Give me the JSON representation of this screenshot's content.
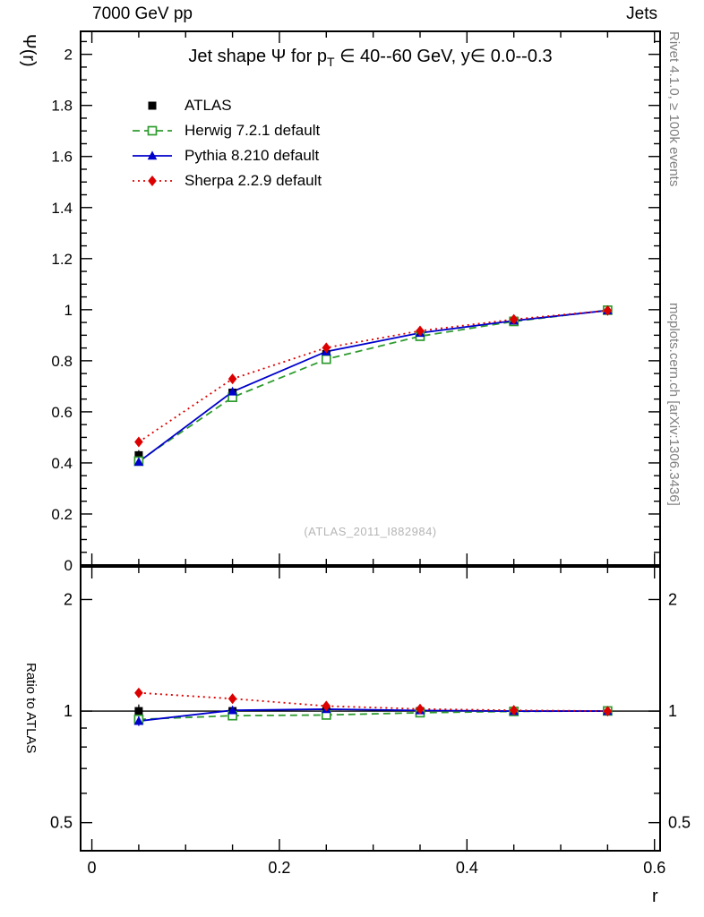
{
  "header": {
    "left": "7000 GeV pp",
    "right": "Jets"
  },
  "title": {
    "pre": "Jet shape Ψ for p",
    "sub": "T",
    "post": " ∈ 40--60 GeV, y∈ 0.0--0.3"
  },
  "axis_labels": {
    "y_main": "Ψ(r)",
    "y_ratio": "Ratio to ATLAS",
    "x": "r"
  },
  "watermark": "(ATLAS_2011_I882984)",
  "side_notes": {
    "top_right": "Rivet 4.1.0, ≥ 100k events",
    "bottom_right": "mcplots.cern.ch [arXiv:1306.3436]"
  },
  "chart_data": {
    "type": "line",
    "title": "Jet shape Ψ for p_T ∈ 40--60 GeV, y∈ 0.0--0.3",
    "xlabel": "r",
    "ylabel": "Ψ(r)",
    "ratio_ylabel": "Ratio to ATLAS",
    "xlim": [
      -0.012,
      0.606
    ],
    "main_ylim": [
      0,
      2.09
    ],
    "ratio_ylim": [
      0.42,
      2.45
    ],
    "ratio_scale": "log",
    "grid": "off",
    "legend_position": "top-left",
    "x": [
      0.05,
      0.15,
      0.25,
      0.35,
      0.45,
      0.55
    ],
    "axes": {
      "x_major": [
        0,
        0.2,
        0.4,
        0.6
      ],
      "x_labels": [
        "0",
        "0.2",
        "0.4",
        "0.6"
      ],
      "x_minor_step": 0.05,
      "y_main_major": [
        0,
        0.2,
        0.4,
        0.6,
        0.8,
        1,
        1.2,
        1.4,
        1.6,
        1.8,
        2
      ],
      "y_main_labels": [
        "0",
        "0.2",
        "0.4",
        "0.6",
        "0.8",
        "1",
        "1.2",
        "1.4",
        "1.6",
        "1.8",
        "2"
      ],
      "y_main_minor_step": 0.05,
      "ratio_major": [
        0.5,
        1,
        2
      ],
      "ratio_labels": [
        "0.5",
        "1",
        "2"
      ],
      "ratio_minor": [
        0.6,
        0.7,
        0.8,
        0.9
      ]
    },
    "series": [
      {
        "name": "ATLAS",
        "color": "#000000",
        "marker": "square-filled",
        "line": "none",
        "values": [
          0.43,
          0.675,
          0.826,
          0.905,
          0.957,
          0.997
        ],
        "errors": [
          0.02,
          0.012,
          0.009,
          0.007,
          0.005,
          0.003
        ],
        "ratio": [
          1,
          1,
          1,
          1,
          1,
          1
        ],
        "ratio_errors": [
          0.042,
          0.02,
          0.013,
          0.009,
          0.006,
          0.004
        ]
      },
      {
        "name": "Herwig 7.2.1 default",
        "color": "#2e9b2e",
        "marker": "square-open",
        "line": "dashed",
        "values": [
          0.407,
          0.657,
          0.806,
          0.896,
          0.954,
          0.998
        ],
        "errors": [
          0.006,
          0.005,
          0.004,
          0.003,
          0.002,
          0.002
        ],
        "ratio": [
          0.95,
          0.972,
          0.976,
          0.99,
          0.998,
          1.001
        ],
        "ratio_errors": [
          0.014,
          0.008,
          0.006,
          0.004,
          0.003,
          0.002
        ]
      },
      {
        "name": "Pythia 8.210 default",
        "color": "#0000cc",
        "marker": "triangle-filled",
        "line": "solid",
        "values": [
          0.404,
          0.679,
          0.836,
          0.909,
          0.957,
          0.997
        ],
        "errors": [
          0.01,
          0.007,
          0.005,
          0.004,
          0.003,
          0.002
        ],
        "ratio": [
          0.94,
          1.005,
          1.012,
          1.004,
          1.0,
          1.0
        ],
        "ratio_errors": [
          0.028,
          0.012,
          0.008,
          0.006,
          0.004,
          0.003
        ]
      },
      {
        "name": "Sherpa 2.2.9 default",
        "color": "#dd0000",
        "marker": "diamond-filled",
        "line": "dotted",
        "values": [
          0.482,
          0.729,
          0.851,
          0.917,
          0.962,
          0.997
        ],
        "errors": [
          0.01,
          0.007,
          0.005,
          0.004,
          0.003,
          0.002
        ],
        "ratio": [
          1.12,
          1.08,
          1.032,
          1.013,
          1.005,
          1.0
        ],
        "ratio_errors": [
          0.02,
          0.01,
          0.007,
          0.005,
          0.004,
          0.003
        ]
      }
    ]
  }
}
